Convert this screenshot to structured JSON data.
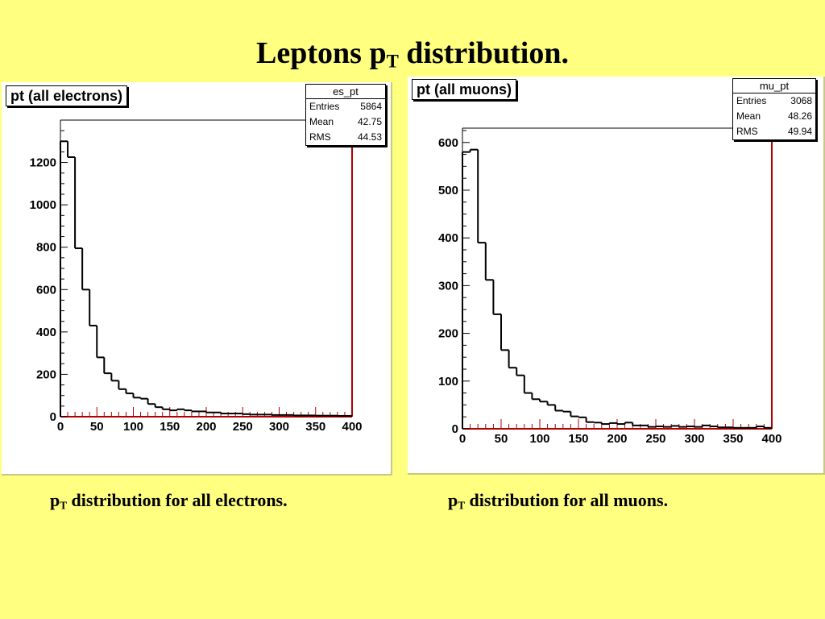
{
  "slide": {
    "title_main": "Leptons p",
    "title_sub": "T",
    "title_rest": " distribution.",
    "caption_left_main": "p",
    "caption_left_sub": "T",
    "caption_left_rest": " distribution for all electrons.",
    "caption_right_main": "p",
    "caption_right_sub": "T",
    "caption_right_rest": " distribution for all muons."
  },
  "colors": {
    "background": "#ffff80",
    "histogram_line": "#000000",
    "red_line": "#b00000"
  },
  "chart_data": [
    {
      "type": "bar",
      "title": "pt (all electrons)",
      "stats": {
        "name": "es_pt",
        "rows": [
          {
            "label": "Entries",
            "value": "5864"
          },
          {
            "label": "Mean",
            "value": "42.75"
          },
          {
            "label": "RMS",
            "value": "44.53"
          }
        ]
      },
      "xlim": [
        0,
        400
      ],
      "ylim": [
        0,
        1400
      ],
      "x_ticks": [
        "0",
        "50",
        "100",
        "150",
        "200",
        "250",
        "300",
        "350",
        "400"
      ],
      "y_ticks": [
        "0",
        "200",
        "400",
        "600",
        "800",
        "1000",
        "1200"
      ],
      "bin_width": 10,
      "values": [
        1300,
        1225,
        795,
        600,
        430,
        280,
        205,
        170,
        130,
        110,
        90,
        85,
        60,
        45,
        35,
        30,
        35,
        30,
        25,
        25,
        20,
        20,
        15,
        15,
        15,
        12,
        10,
        10,
        10,
        8,
        8,
        8,
        6,
        6,
        6,
        5,
        5,
        5,
        4,
        4
      ]
    },
    {
      "type": "bar",
      "title": "pt (all muons)",
      "stats": {
        "name": "mu_pt",
        "rows": [
          {
            "label": "Entries",
            "value": "3068"
          },
          {
            "label": "Mean",
            "value": "48.26"
          },
          {
            "label": "RMS",
            "value": "49.94"
          }
        ]
      },
      "xlim": [
        0,
        400
      ],
      "ylim": [
        0,
        630
      ],
      "x_ticks": [
        "0",
        "50",
        "100",
        "150",
        "200",
        "250",
        "300",
        "350",
        "400"
      ],
      "y_ticks": [
        "0",
        "100",
        "200",
        "300",
        "400",
        "500",
        "600"
      ],
      "bin_width": 10,
      "values": [
        580,
        585,
        390,
        312,
        240,
        165,
        128,
        112,
        75,
        62,
        57,
        50,
        38,
        36,
        26,
        24,
        14,
        13,
        10,
        12,
        10,
        13,
        7,
        7,
        4,
        5,
        4,
        6,
        4,
        5,
        4,
        7,
        5,
        3,
        3,
        2,
        2,
        2,
        5,
        2
      ]
    }
  ]
}
